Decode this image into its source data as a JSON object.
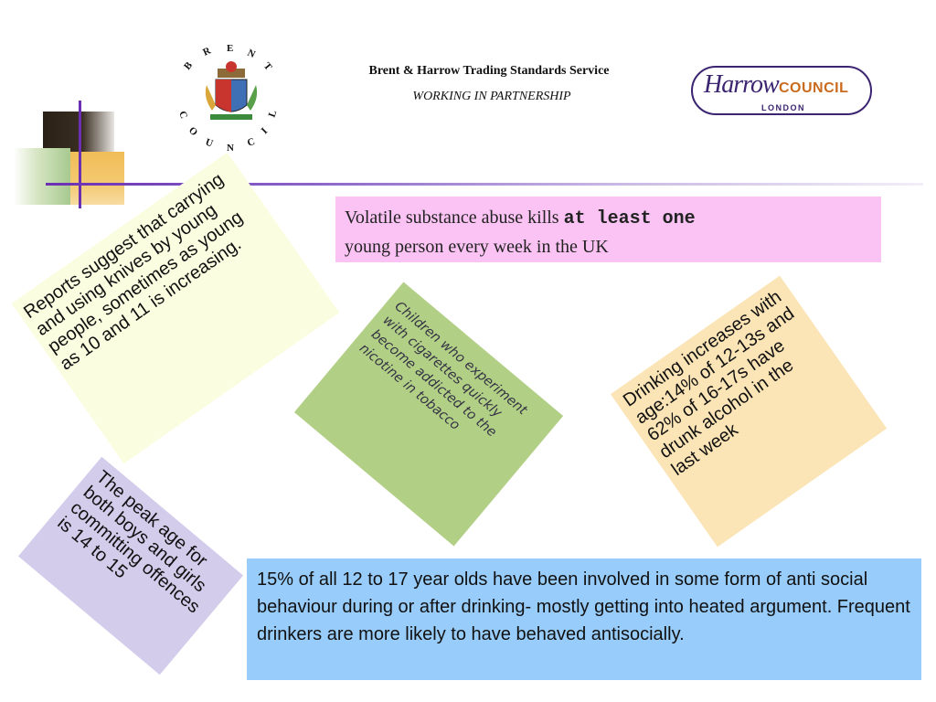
{
  "header": {
    "title": "Brent & Harrow Trading Standards Service",
    "subtitle": "WORKING IN PARTNERSHIP"
  },
  "logos": {
    "brent": {
      "top_text": "BRENT",
      "bottom_text": "COUNCIL"
    },
    "harrow": {
      "word1": "Harrow",
      "word2": "COUNCIL",
      "word3": "LONDON"
    }
  },
  "facts": {
    "vsa_part1": "Volatile substance abuse kills ",
    "vsa_bold": "at least one",
    "vsa_part2": "young person every week in the UK",
    "knives": "Reports suggest that carrying and using knives by young people, sometimes as young as 10 and 11 is increasing.",
    "cigarettes": "Children who experiment with cigarettes quickly become addicted to the nicotine in tobacco",
    "drinking": "Drinking increases with age:14% of 12-13s and 62% of 16-17s have drunk alcohol in the last week",
    "peak_age": "The peak age for both boys and girls committing offences is 14 to 15",
    "antisocial": "15% of all 12 to 17 year olds have been involved in some form of anti social behaviour during or after drinking- mostly getting into heated argument. Frequent drinkers are more likely to have behaved antisocially."
  },
  "colors": {
    "pink_box": "#fbc3f3",
    "blue_box": "#98ccfb",
    "knives_note": "#fbfde0",
    "cigarettes_note": "#b2cf86",
    "drinking_note": "#fbe4b6",
    "peak_note": "#d3cceb",
    "accent_purple": "#6b2fb3"
  }
}
